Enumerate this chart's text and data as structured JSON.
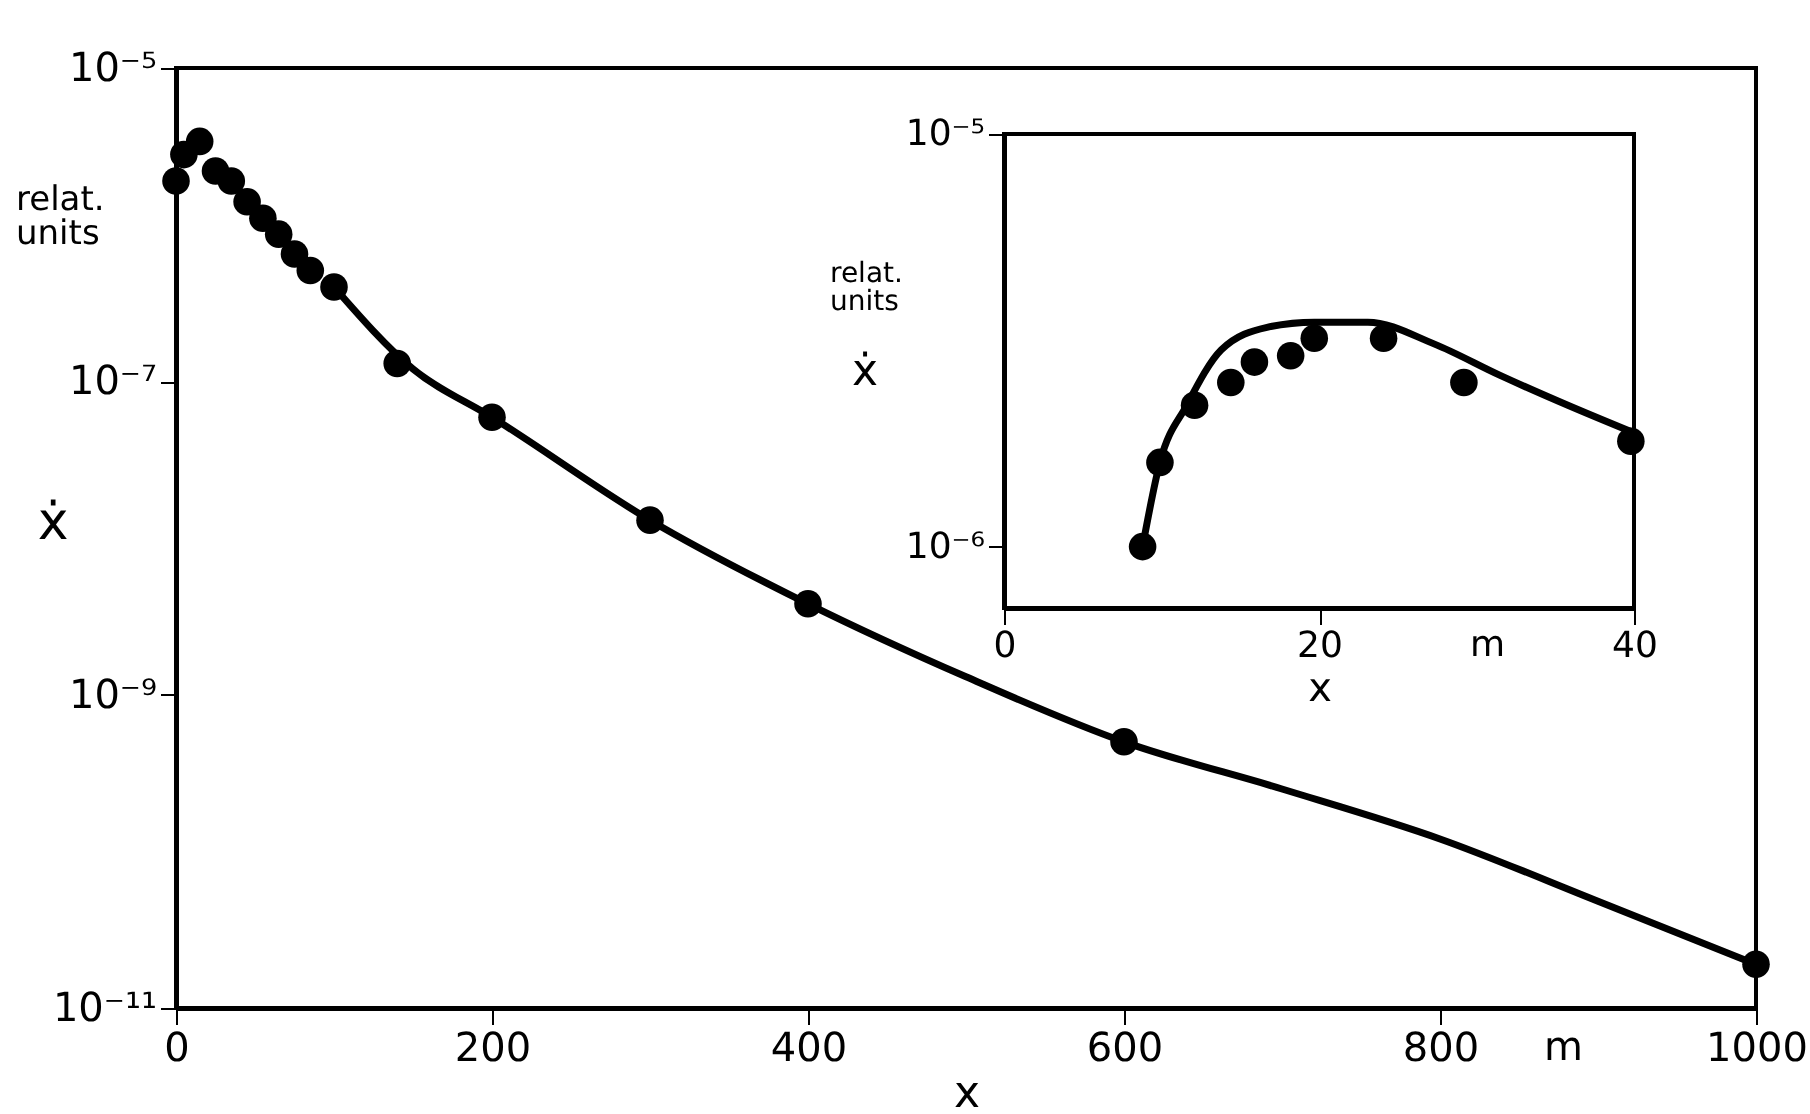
{
  "chart_data": [
    {
      "type": "scatter",
      "xlabel": "x",
      "ylabel": "ẋ",
      "annotations": [
        "relat. units",
        "m"
      ],
      "log": "y",
      "grid": false,
      "xlim": [
        0,
        1000
      ],
      "xticks": [
        0,
        200,
        400,
        600,
        800,
        1000
      ],
      "ylim": [
        1e-11,
        1e-05
      ],
      "yticks": [
        {
          "value": 1e-11,
          "label": "10⁻¹¹"
        },
        {
          "value": 1e-09,
          "label": "10⁻⁹"
        },
        {
          "value": 1e-07,
          "label": "10⁻⁷"
        },
        {
          "value": 1e-05,
          "label": "10⁻⁵"
        }
      ],
      "series": [
        {
          "type": "scatter",
          "marker": "circle",
          "color": "#000000",
          "x": [
            0,
            5,
            15,
            25,
            35,
            45,
            55,
            65,
            75,
            85,
            100,
            140,
            200,
            300,
            400,
            600,
            1000
          ],
          "values": [
            1.9e-06,
            2.8e-06,
            3.4e-06,
            2.2e-06,
            1.9e-06,
            1.4e-06,
            1.1e-06,
            8.7e-07,
            6.5e-07,
            5.1e-07,
            4e-07,
            1.3e-07,
            5.9e-08,
            1.3e-08,
            3.8e-09,
            5e-10,
            1.9e-11
          ]
        },
        {
          "type": "line",
          "color": "#000000",
          "x": [
            100,
            150,
            200,
            300,
            400,
            500,
            600,
            700,
            800,
            900,
            1000
          ],
          "values": [
            4e-07,
            1.2e-07,
            5.9e-08,
            1.3e-08,
            3.8e-09,
            1.3e-09,
            5e-10,
            2.5e-10,
            1.2e-10,
            4.8e-11,
            1.9e-11
          ]
        }
      ]
    },
    {
      "type": "scatter",
      "xlabel": "x",
      "ylabel": "ẋ",
      "annotations": [
        "relat. units",
        "m"
      ],
      "log": "y",
      "grid": false,
      "xlim": [
        0,
        40
      ],
      "xticks": [
        0,
        20,
        40
      ],
      "ylim": [
        7.1e-07,
        1e-05
      ],
      "yticks": [
        {
          "value": 1e-06,
          "label": "10⁻⁶"
        },
        {
          "value": 1e-05,
          "label": "10⁻⁵"
        }
      ],
      "series": [
        {
          "type": "scatter",
          "marker": "circle",
          "color": "#000000",
          "x": [
            8.8,
            9.9,
            12.1,
            14.4,
            15.9,
            18.2,
            19.7,
            24.1,
            29.2,
            39.8
          ],
          "values": [
            1e-06,
            1.6e-06,
            2.2e-06,
            2.5e-06,
            2.8e-06,
            2.9e-06,
            3.2e-06,
            3.2e-06,
            2.5e-06,
            1.8e-06
          ]
        },
        {
          "type": "line",
          "color": "#000000",
          "x": [
            8.8,
            9.9,
            11.6,
            13.8,
            16.7,
            19.7,
            23.1,
            27.3,
            31.5,
            35.8,
            39.8
          ],
          "values": [
            1e-06,
            1.6e-06,
            2.2e-06,
            3e-06,
            3.4e-06,
            3.5e-06,
            3.5e-06,
            3.1e-06,
            2.6e-06,
            2.2e-06,
            1.9e-06
          ]
        }
      ]
    }
  ]
}
